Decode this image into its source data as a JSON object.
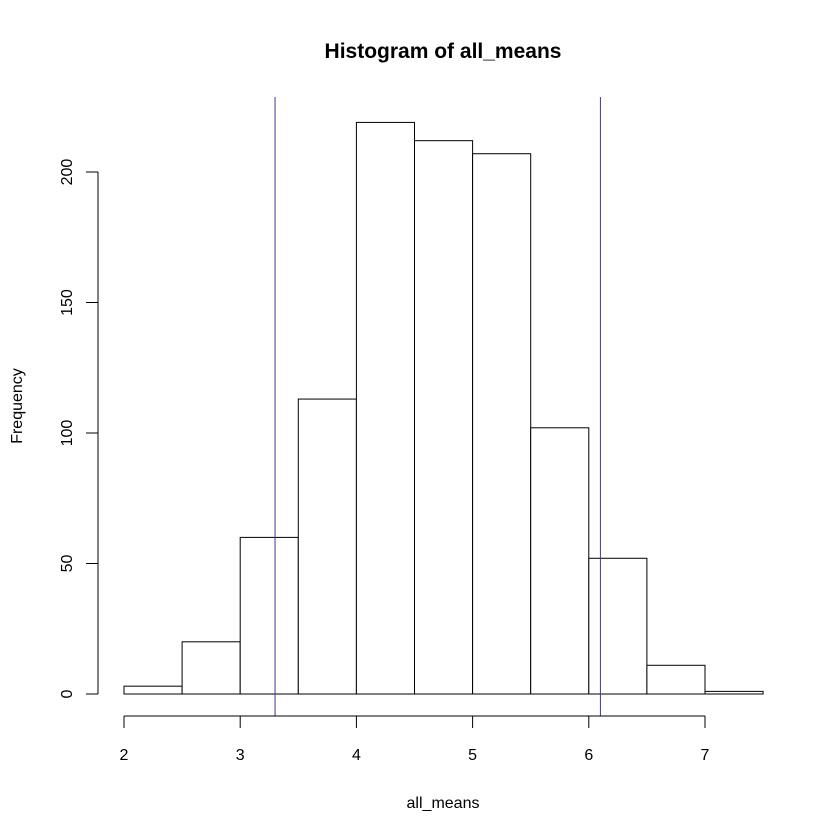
{
  "chart_data": {
    "type": "bar",
    "title": "Histogram of all_means",
    "xlabel": "all_means",
    "ylabel": "Frequency",
    "bins": [
      {
        "start": 2.0,
        "end": 2.5,
        "count": 3
      },
      {
        "start": 2.5,
        "end": 3.0,
        "count": 20
      },
      {
        "start": 3.0,
        "end": 3.5,
        "count": 60
      },
      {
        "start": 3.5,
        "end": 4.0,
        "count": 113
      },
      {
        "start": 4.0,
        "end": 4.5,
        "count": 219
      },
      {
        "start": 4.5,
        "end": 5.0,
        "count": 212
      },
      {
        "start": 5.0,
        "end": 5.5,
        "count": 207
      },
      {
        "start": 5.5,
        "end": 6.0,
        "count": 102
      },
      {
        "start": 6.0,
        "end": 6.5,
        "count": 52
      },
      {
        "start": 6.5,
        "end": 7.0,
        "count": 11
      },
      {
        "start": 7.0,
        "end": 7.5,
        "count": 1
      }
    ],
    "xlim": [
      2,
      7.5
    ],
    "ylim": [
      0,
      220
    ],
    "x_ticks": [
      "2",
      "3",
      "4",
      "5",
      "6",
      "7"
    ],
    "y_ticks": [
      "0",
      "50",
      "100",
      "150",
      "200"
    ],
    "reference_lines": [
      3.3,
      6.1
    ],
    "reference_line_color": "#3b3b8f",
    "bar_fill": "#ffffff",
    "bar_stroke": "#000000",
    "grid": false,
    "legend": false
  }
}
